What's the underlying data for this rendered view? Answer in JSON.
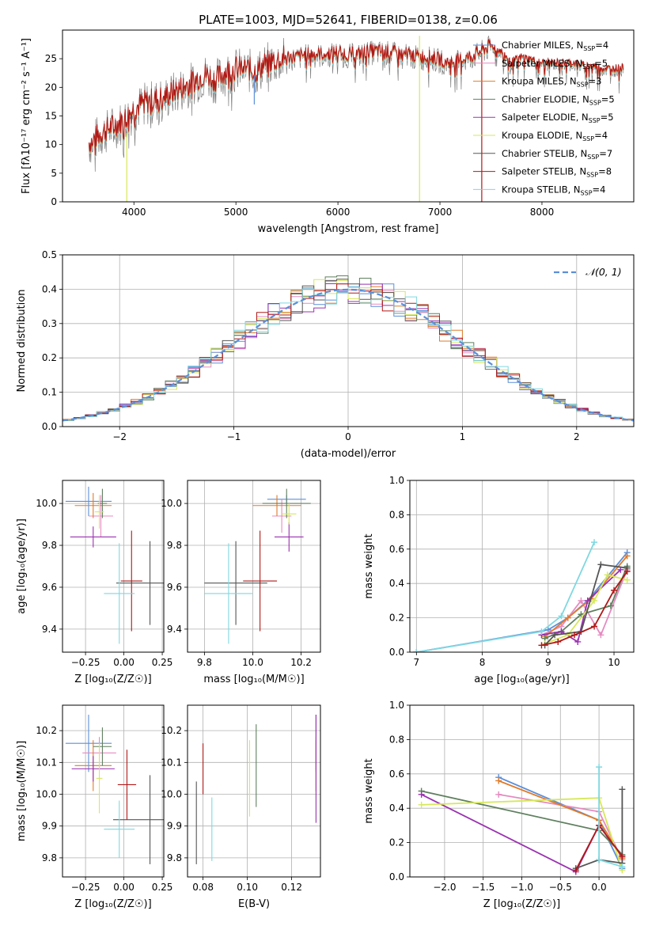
{
  "figure": {
    "title": "PLATE=1003, MJD=52641, FIBERID=0138, z=0.06"
  },
  "models": [
    {
      "name": "Chabrier MILES",
      "nssp": "4",
      "color": "#5b8fd9"
    },
    {
      "name": "Salpeter MILES",
      "nssp": "5",
      "color": "#e58ac0"
    },
    {
      "name": "Kroupa MILES",
      "nssp": "3",
      "color": "#e07b2a"
    },
    {
      "name": "Chabrier ELODIE",
      "nssp": "5",
      "color": "#5f7f5f"
    },
    {
      "name": "Salpeter ELODIE",
      "nssp": "5",
      "color": "#9b30b0"
    },
    {
      "name": "Kroupa ELODIE",
      "nssp": "4",
      "color": "#d6e85a"
    },
    {
      "name": "Chabrier STELIB",
      "nssp": "7",
      "color": "#555555"
    },
    {
      "name": "Salpeter STELIB",
      "nssp": "8",
      "color": "#b01818"
    },
    {
      "name": "Kroupa STELIB",
      "nssp": "4",
      "color": "#7fd8e0"
    }
  ],
  "chart_data": [
    {
      "id": "spectrum",
      "type": "line",
      "xlabel": "wavelength [Angstrom, rest frame]",
      "ylabel": "Flux [fλ10⁻¹⁷ erg cm⁻² s⁻¹ A⁻¹]",
      "xlim": [
        3300,
        8900
      ],
      "ylim": [
        0,
        30
      ],
      "xticks": [
        4000,
        5000,
        6000,
        7000,
        8000
      ],
      "yticks": [
        0,
        5,
        10,
        15,
        20,
        25
      ],
      "legend_position": "right",
      "continuum": [
        [
          3560,
          10
        ],
        [
          3700,
          12
        ],
        [
          3800,
          13
        ],
        [
          3900,
          14
        ],
        [
          4000,
          16
        ],
        [
          4100,
          17
        ],
        [
          4200,
          17.5
        ],
        [
          4300,
          18
        ],
        [
          4400,
          19
        ],
        [
          4500,
          20
        ],
        [
          4600,
          21
        ],
        [
          4700,
          22
        ],
        [
          4800,
          21
        ],
        [
          4900,
          22.5
        ],
        [
          5000,
          23
        ],
        [
          5100,
          23
        ],
        [
          5200,
          22.5
        ],
        [
          5300,
          24
        ],
        [
          5400,
          24.5
        ],
        [
          5500,
          25
        ],
        [
          5600,
          25
        ],
        [
          5700,
          25.5
        ],
        [
          5800,
          25.5
        ],
        [
          5900,
          25.5
        ],
        [
          6000,
          26
        ],
        [
          6100,
          25.5
        ],
        [
          6200,
          25.5
        ],
        [
          6300,
          26
        ],
        [
          6400,
          26
        ],
        [
          6500,
          26
        ],
        [
          6600,
          25.5
        ],
        [
          6700,
          25.5
        ],
        [
          6800,
          25
        ],
        [
          6900,
          25
        ],
        [
          7000,
          24.5
        ],
        [
          7100,
          24
        ],
        [
          7200,
          24.5
        ],
        [
          7300,
          25
        ],
        [
          7400,
          26
        ],
        [
          7500,
          27
        ],
        [
          7600,
          26
        ],
        [
          7700,
          24
        ],
        [
          7800,
          25
        ],
        [
          7900,
          24.5
        ],
        [
          8000,
          24
        ],
        [
          8100,
          24
        ],
        [
          8200,
          24
        ],
        [
          8300,
          24
        ],
        [
          8400,
          23.5
        ],
        [
          8500,
          23.5
        ],
        [
          8600,
          23
        ],
        [
          8700,
          23
        ],
        [
          8800,
          23
        ]
      ],
      "features": [
        {
          "x": 3930,
          "y0": 0,
          "y1": 12,
          "color": "#d6e85a"
        },
        {
          "x": 6800,
          "y0": 0,
          "y1": 29,
          "color": "#d6e85a"
        },
        {
          "x": 7410,
          "y0": 0,
          "y1": 26,
          "color": "#b01818"
        },
        {
          "x": 5180,
          "y0": 17,
          "y1": 22,
          "color": "#5b8fd9"
        }
      ]
    },
    {
      "id": "residuals",
      "type": "histogram",
      "xlabel": "(data-model)/error",
      "ylabel": "Normed distribution",
      "xlim": [
        -2.5,
        2.5
      ],
      "ylim": [
        0,
        0.5
      ],
      "xticks": [
        -2,
        -1,
        0,
        1,
        2
      ],
      "xtick_labels": [
        "−2",
        "−1",
        "0",
        "1",
        "2"
      ],
      "yticks": [
        0,
        0.1,
        0.2,
        0.3,
        0.4,
        0.5
      ],
      "ytick_labels": [
        "0.0",
        "0.1",
        "0.2",
        "0.3",
        "0.4",
        "0.5"
      ],
      "reference": {
        "label": "𝒩(0, 1)",
        "mean": 0,
        "sigma": 1,
        "color": "#5b8fd9"
      },
      "bin_width": 0.1,
      "bin_start": -2.5,
      "legend_position": "top-right"
    },
    {
      "id": "age-Z",
      "type": "scatter",
      "xlabel": "Z [log₁₀(Z/Z☉)]",
      "ylabel": "age  [log₁₀(age/yr)]",
      "xlim": [
        -0.4,
        0.26
      ],
      "ylim": [
        9.29,
        10.11
      ],
      "xticks": [
        -0.25,
        0.0,
        0.25
      ],
      "xtick_labels": [
        "−0.25",
        "0.00",
        "0.25"
      ],
      "yticks": [
        9.4,
        9.6,
        9.8,
        10.0
      ],
      "ytick_labels": [
        "9.4",
        "9.6",
        "9.8",
        "10.0"
      ],
      "points": [
        {
          "model": 0,
          "x": -0.23,
          "y": 10.01,
          "xerr": 0.15,
          "yerr": 0.07
        },
        {
          "model": 1,
          "x": -0.15,
          "y": 9.94,
          "xerr": 0.08,
          "yerr": 0.1
        },
        {
          "model": 2,
          "x": -0.2,
          "y": 9.99,
          "xerr": 0.12,
          "yerr": 0.06
        },
        {
          "model": 3,
          "x": -0.14,
          "y": 10.0,
          "xerr": 0.03,
          "yerr": 0.07
        },
        {
          "model": 4,
          "x": -0.2,
          "y": 9.84,
          "xerr": 0.15,
          "yerr": 0.05
        },
        {
          "model": 5,
          "x": -0.16,
          "y": 9.96,
          "xerr": 0.03,
          "yerr": 0.08
        },
        {
          "model": 6,
          "x": 0.17,
          "y": 9.62,
          "xerr": 0.22,
          "yerr": 0.2
        },
        {
          "model": 7,
          "x": 0.05,
          "y": 9.63,
          "xerr": 0.07,
          "yerr": 0.24
        },
        {
          "model": 8,
          "x": -0.03,
          "y": 9.57,
          "xerr": 0.1,
          "yerr": 0.24
        }
      ]
    },
    {
      "id": "age-mass",
      "type": "scatter",
      "xlabel": "mass [log₁₀(M/M☉)]",
      "ylabel": "",
      "xlim": [
        9.73,
        10.28
      ],
      "ylim": [
        9.29,
        10.11
      ],
      "xticks": [
        9.8,
        10.0,
        10.2
      ],
      "xtick_labels": [
        "9.8",
        "10.0",
        "10.2"
      ],
      "yticks": [
        9.4,
        9.6,
        9.8,
        10.0
      ],
      "ytick_labels": [
        "9.4",
        "9.6",
        "9.8",
        "10.0"
      ],
      "points": [
        {
          "model": 0,
          "x": 10.14,
          "y": 10.02,
          "xerr": 0.08,
          "yerr": 0.02
        },
        {
          "model": 1,
          "x": 10.12,
          "y": 9.94,
          "xerr": 0.04,
          "yerr": 0.08
        },
        {
          "model": 2,
          "x": 10.1,
          "y": 9.99,
          "xerr": 0.1,
          "yerr": 0.05
        },
        {
          "model": 3,
          "x": 10.14,
          "y": 10.0,
          "xerr": 0.1,
          "yerr": 0.07
        },
        {
          "model": 4,
          "x": 10.15,
          "y": 9.84,
          "xerr": 0.06,
          "yerr": 0.07
        },
        {
          "model": 5,
          "x": 10.15,
          "y": 9.95,
          "xerr": 0.03,
          "yerr": 0.05
        },
        {
          "model": 6,
          "x": 9.93,
          "y": 9.62,
          "xerr": 0.13,
          "yerr": 0.2
        },
        {
          "model": 7,
          "x": 10.03,
          "y": 9.63,
          "xerr": 0.07,
          "yerr": 0.24
        },
        {
          "model": 8,
          "x": 9.9,
          "y": 9.57,
          "xerr": 0.1,
          "yerr": 0.24
        }
      ]
    },
    {
      "id": "mass-weight-age",
      "type": "line",
      "xlabel": "age  [log₁₀(age/yr)]",
      "ylabel": "mass weight",
      "xlim": [
        6.9,
        10.3
      ],
      "ylim": [
        0,
        1.0
      ],
      "xticks": [
        7,
        8,
        9,
        10
      ],
      "xtick_labels": [
        "7",
        "8",
        "9",
        "10"
      ],
      "yticks": [
        0,
        0.2,
        0.4,
        0.6,
        0.8,
        1.0
      ],
      "ytick_labels": [
        "0.0",
        "0.2",
        "0.4",
        "0.6",
        "0.8",
        "1.0"
      ],
      "series": [
        {
          "model": 0,
          "x": [
            7.0,
            9.0,
            9.3,
            9.6,
            10.2
          ],
          "y": [
            0.0,
            0.13,
            0.2,
            0.3,
            0.58
          ]
        },
        {
          "model": 1,
          "x": [
            8.9,
            9.2,
            9.5,
            9.8,
            10.2
          ],
          "y": [
            0.1,
            0.15,
            0.3,
            0.1,
            0.48
          ]
        },
        {
          "model": 2,
          "x": [
            8.95,
            9.3,
            9.65,
            10.2
          ],
          "y": [
            0.09,
            0.2,
            0.31,
            0.56
          ]
        },
        {
          "model": 3,
          "x": [
            8.95,
            9.2,
            9.5,
            9.95,
            10.2
          ],
          "y": [
            0.08,
            0.12,
            0.22,
            0.27,
            0.5
          ]
        },
        {
          "model": 4,
          "x": [
            8.9,
            9.2,
            9.45,
            9.6,
            10.1
          ],
          "y": [
            0.1,
            0.12,
            0.06,
            0.3,
            0.48
          ]
        },
        {
          "model": 5,
          "x": [
            8.95,
            9.3,
            9.7,
            9.9,
            10.2
          ],
          "y": [
            0.05,
            0.1,
            0.3,
            0.45,
            0.42
          ]
        },
        {
          "model": 6,
          "x": [
            8.95,
            9.1,
            9.5,
            9.8,
            10.2
          ],
          "y": [
            0.04,
            0.1,
            0.12,
            0.51,
            0.49
          ]
        },
        {
          "model": 7,
          "x": [
            8.9,
            9.15,
            9.4,
            9.7,
            10.0,
            10.2
          ],
          "y": [
            0.04,
            0.06,
            0.1,
            0.15,
            0.36,
            0.47
          ]
        },
        {
          "model": 8,
          "x": [
            7.0,
            8.9,
            9.2,
            9.7
          ],
          "y": [
            0.0,
            0.12,
            0.21,
            0.64
          ]
        }
      ]
    },
    {
      "id": "mass-Z",
      "type": "scatter",
      "xlabel": "Z [log₁₀(Z/Z☉)]",
      "ylabel": "mass [log₁₀(M/M☉)]",
      "xlim": [
        -0.4,
        0.26
      ],
      "ylim": [
        9.74,
        10.28
      ],
      "xticks": [
        -0.25,
        0.0,
        0.25
      ],
      "xtick_labels": [
        "−0.25",
        "0.00",
        "0.25"
      ],
      "yticks": [
        9.8,
        9.9,
        10.0,
        10.1,
        10.2
      ],
      "ytick_labels": [
        "9.8",
        "9.9",
        "10.0",
        "10.1",
        "10.2"
      ],
      "points": [
        {
          "model": 0,
          "x": -0.23,
          "y": 10.16,
          "xerr": 0.15,
          "yerr": 0.09
        },
        {
          "model": 1,
          "x": -0.16,
          "y": 10.13,
          "xerr": 0.11,
          "yerr": 0.05
        },
        {
          "model": 2,
          "x": -0.2,
          "y": 10.09,
          "xerr": 0.12,
          "yerr": 0.08
        },
        {
          "model": 3,
          "x": -0.14,
          "y": 10.15,
          "xerr": 0.06,
          "yerr": 0.06
        },
        {
          "model": 4,
          "x": -0.2,
          "y": 10.08,
          "xerr": 0.14,
          "yerr": 0.04
        },
        {
          "model": 5,
          "x": -0.16,
          "y": 10.05,
          "xerr": 0.02,
          "yerr": 0.11
        },
        {
          "model": 6,
          "x": 0.17,
          "y": 9.92,
          "xerr": 0.24,
          "yerr": 0.14
        },
        {
          "model": 7,
          "x": 0.02,
          "y": 10.03,
          "xerr": 0.06,
          "yerr": 0.11
        },
        {
          "model": 8,
          "x": -0.03,
          "y": 9.89,
          "xerr": 0.1,
          "yerr": 0.09
        }
      ]
    },
    {
      "id": "mass-ebv",
      "type": "scatter",
      "xlabel": "E(B-V)",
      "ylabel": "",
      "xlim": [
        0.073,
        0.133
      ],
      "ylim": [
        9.74,
        10.28
      ],
      "xticks": [
        0.08,
        0.1,
        0.12
      ],
      "xtick_labels": [
        "0.08",
        "0.10",
        "0.12"
      ],
      "yticks": [
        9.8,
        9.9,
        10.0,
        10.1,
        10.2
      ],
      "ytick_labels": [
        "9.8",
        "9.9",
        "10.0",
        "10.1",
        "10.2"
      ],
      "points": [
        {
          "model": 0,
          "x": 0.131,
          "y": 10.16,
          "xerr": 0,
          "yerr": 0.09
        },
        {
          "model": 1,
          "x": 0.131,
          "y": 10.13,
          "xerr": 0,
          "yerr": 0.05
        },
        {
          "model": 2,
          "x": 0.131,
          "y": 10.09,
          "xerr": 0,
          "yerr": 0.08
        },
        {
          "model": 3,
          "x": 0.104,
          "y": 10.09,
          "xerr": 0,
          "yerr": 0.13
        },
        {
          "model": 4,
          "x": 0.131,
          "y": 10.08,
          "xerr": 0,
          "yerr": 0.17
        },
        {
          "model": 5,
          "x": 0.101,
          "y": 10.05,
          "xerr": 0,
          "yerr": 0.12
        },
        {
          "model": 6,
          "x": 0.077,
          "y": 9.91,
          "xerr": 0,
          "yerr": 0.13
        },
        {
          "model": 7,
          "x": 0.08,
          "y": 10.08,
          "xerr": 0,
          "yerr": 0.08
        },
        {
          "model": 8,
          "x": 0.084,
          "y": 9.89,
          "xerr": 0,
          "yerr": 0.1
        }
      ]
    },
    {
      "id": "mass-weight-Z",
      "type": "line",
      "xlabel": "Z [log₁₀(Z/Z☉)]",
      "ylabel": "mass weight",
      "xlim": [
        -2.45,
        0.45
      ],
      "ylim": [
        0,
        1.0
      ],
      "xticks": [
        -2.0,
        -1.5,
        -1.0,
        -0.5,
        0.0
      ],
      "xtick_labels": [
        "−2.0",
        "−1.5",
        "−1.0",
        "−0.5",
        "0.0"
      ],
      "yticks": [
        0,
        0.2,
        0.4,
        0.6,
        0.8,
        1.0
      ],
      "ytick_labels": [
        "0.0",
        "0.2",
        "0.4",
        "0.6",
        "0.8",
        "1.0"
      ],
      "series": [
        {
          "model": 0,
          "x": [
            -1.3,
            0.0,
            0.3
          ],
          "y": [
            0.58,
            0.33,
            0.05
          ]
        },
        {
          "model": 1,
          "x": [
            -1.3,
            0.0,
            0.3
          ],
          "y": [
            0.48,
            0.38,
            0.1
          ]
        },
        {
          "model": 2,
          "x": [
            -1.3,
            0.0,
            0.3
          ],
          "y": [
            0.56,
            0.33,
            0.11
          ]
        },
        {
          "model": 3,
          "x": [
            -2.3,
            0.0,
            0.3
          ],
          "y": [
            0.5,
            0.27,
            0.13
          ]
        },
        {
          "model": 4,
          "x": [
            -2.3,
            -0.3,
            0.0,
            0.3
          ],
          "y": [
            0.48,
            0.03,
            0.3,
            0.12
          ]
        },
        {
          "model": 5,
          "x": [
            -2.3,
            0.0,
            0.3
          ],
          "y": [
            0.42,
            0.46,
            0.04
          ]
        },
        {
          "model": 6,
          "x": [
            -0.3,
            0.0,
            0.3,
            0.3
          ],
          "y": [
            0.05,
            0.1,
            0.08,
            0.51
          ]
        },
        {
          "model": 7,
          "x": [
            -0.3,
            0.0,
            0.3
          ],
          "y": [
            0.04,
            0.3,
            0.12
          ]
        },
        {
          "model": 8,
          "x": [
            0.0,
            0.0,
            0.3
          ],
          "y": [
            0.64,
            0.1,
            0.06
          ]
        }
      ]
    }
  ]
}
